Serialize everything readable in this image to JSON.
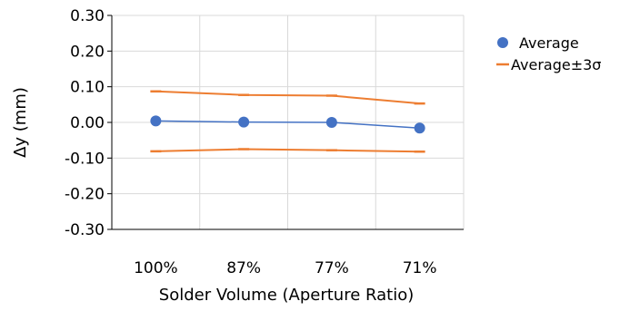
{
  "chart_data": {
    "type": "line",
    "title": "",
    "xlabel": "Solder Volume (Aperture Ratio)",
    "ylabel": "Δy (mm)",
    "categories": [
      "100%",
      "87%",
      "77%",
      "71%"
    ],
    "ylim": [
      -0.3,
      0.3
    ],
    "yticks": [
      0.3,
      0.2,
      0.1,
      0.0,
      -0.1,
      -0.2,
      -0.3
    ],
    "ytick_labels": [
      "0.30",
      "0.20",
      "0.10",
      "0.00",
      "-0.10",
      "-0.20",
      "-0.30"
    ],
    "grid": true,
    "legend_position": "right",
    "series": [
      {
        "name": "Average",
        "values": [
          0.004,
          0.001,
          0.0,
          -0.016
        ],
        "color": "#4472C4",
        "style": "line-with-markers"
      },
      {
        "name": "Average±3σ",
        "values": [
          0.087,
          0.077,
          0.075,
          0.053
        ],
        "color": "#ED7D31",
        "style": "line"
      },
      {
        "name": "",
        "values": [
          -0.081,
          -0.075,
          -0.078,
          -0.082
        ],
        "color": "#ED7D31",
        "style": "line"
      }
    ],
    "legend": [
      {
        "label": "Average",
        "symbol": "circle",
        "color": "#4472C4"
      },
      {
        "label": "Average±3σ",
        "symbol": "dash",
        "color": "#ED7D31"
      }
    ]
  }
}
